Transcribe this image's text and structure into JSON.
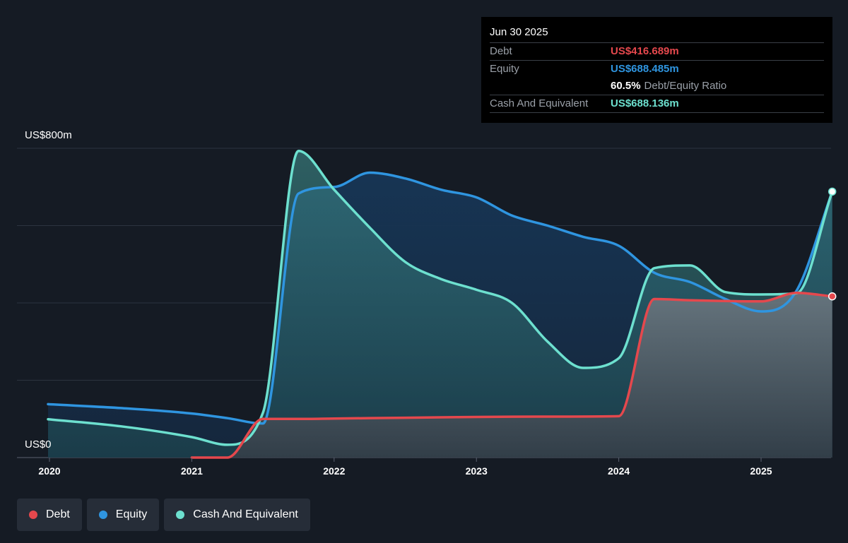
{
  "tooltip": {
    "date": "Jun 30 2025",
    "debt_label": "Debt",
    "debt_value": "US$416.689m",
    "equity_label": "Equity",
    "equity_value": "US$688.485m",
    "ratio_value": "60.5%",
    "ratio_label": "Debt/Equity Ratio",
    "cash_label": "Cash And Equivalent",
    "cash_value": "US$688.136m"
  },
  "legend": [
    {
      "label": "Debt",
      "color": "#e5484d"
    },
    {
      "label": "Equity",
      "color": "#2f95e0"
    },
    {
      "label": "Cash And Equivalent",
      "color": "#6de0cf"
    }
  ],
  "chart_data": {
    "type": "area",
    "y_max_label": "US$800m",
    "y_min_label": "US$0",
    "ylim": [
      0,
      800
    ],
    "xlim": [
      2020,
      2025.5
    ],
    "x_ticks": [
      {
        "value": 2020,
        "label": "2020"
      },
      {
        "value": 2021,
        "label": "2021"
      },
      {
        "value": 2022,
        "label": "2022"
      },
      {
        "value": 2023,
        "label": "2023"
      },
      {
        "value": 2024,
        "label": "2024"
      },
      {
        "value": 2025,
        "label": "2025"
      }
    ],
    "y_gridlines": [
      0,
      200,
      400,
      600,
      800
    ],
    "series": [
      {
        "name": "Equity",
        "color": "#2f95e0",
        "points": [
          [
            2019.99,
            138
          ],
          [
            2020.5,
            128
          ],
          [
            2021.0,
            114
          ],
          [
            2021.25,
            102
          ],
          [
            2021.5,
            88
          ],
          [
            2021.75,
            683
          ],
          [
            2022.0,
            700
          ],
          [
            2022.25,
            737
          ],
          [
            2022.5,
            722
          ],
          [
            2022.75,
            693
          ],
          [
            2023.0,
            673
          ],
          [
            2023.25,
            626
          ],
          [
            2023.5,
            600
          ],
          [
            2023.75,
            571
          ],
          [
            2024.0,
            548
          ],
          [
            2024.25,
            478
          ],
          [
            2024.5,
            454
          ],
          [
            2024.75,
            410
          ],
          [
            2025.0,
            378
          ],
          [
            2025.25,
            432
          ],
          [
            2025.5,
            688
          ]
        ]
      },
      {
        "name": "Cash And Equivalent",
        "color": "#6de0cf",
        "points": [
          [
            2019.99,
            99
          ],
          [
            2020.5,
            81
          ],
          [
            2021.0,
            53
          ],
          [
            2021.25,
            33
          ],
          [
            2021.5,
            116
          ],
          [
            2021.75,
            793
          ],
          [
            2022.0,
            693
          ],
          [
            2022.25,
            595
          ],
          [
            2022.5,
            506
          ],
          [
            2022.75,
            462
          ],
          [
            2023.0,
            434
          ],
          [
            2023.25,
            400
          ],
          [
            2023.5,
            300
          ],
          [
            2023.75,
            232
          ],
          [
            2024.0,
            257
          ],
          [
            2024.25,
            490
          ],
          [
            2024.5,
            497
          ],
          [
            2024.75,
            428
          ],
          [
            2025.0,
            422
          ],
          [
            2025.25,
            425
          ],
          [
            2025.5,
            688
          ]
        ]
      },
      {
        "name": "Debt",
        "color": "#e5484d",
        "points": [
          [
            2021.0,
            0
          ],
          [
            2021.25,
            0
          ],
          [
            2021.5,
            100
          ],
          [
            2021.75,
            100
          ],
          [
            2022.0,
            101
          ],
          [
            2022.5,
            103
          ],
          [
            2023.0,
            105
          ],
          [
            2023.5,
            106
          ],
          [
            2024.0,
            107
          ],
          [
            2024.25,
            410
          ],
          [
            2024.5,
            407
          ],
          [
            2024.75,
            405
          ],
          [
            2025.0,
            404
          ],
          [
            2025.25,
            426
          ],
          [
            2025.5,
            417
          ]
        ]
      }
    ]
  }
}
